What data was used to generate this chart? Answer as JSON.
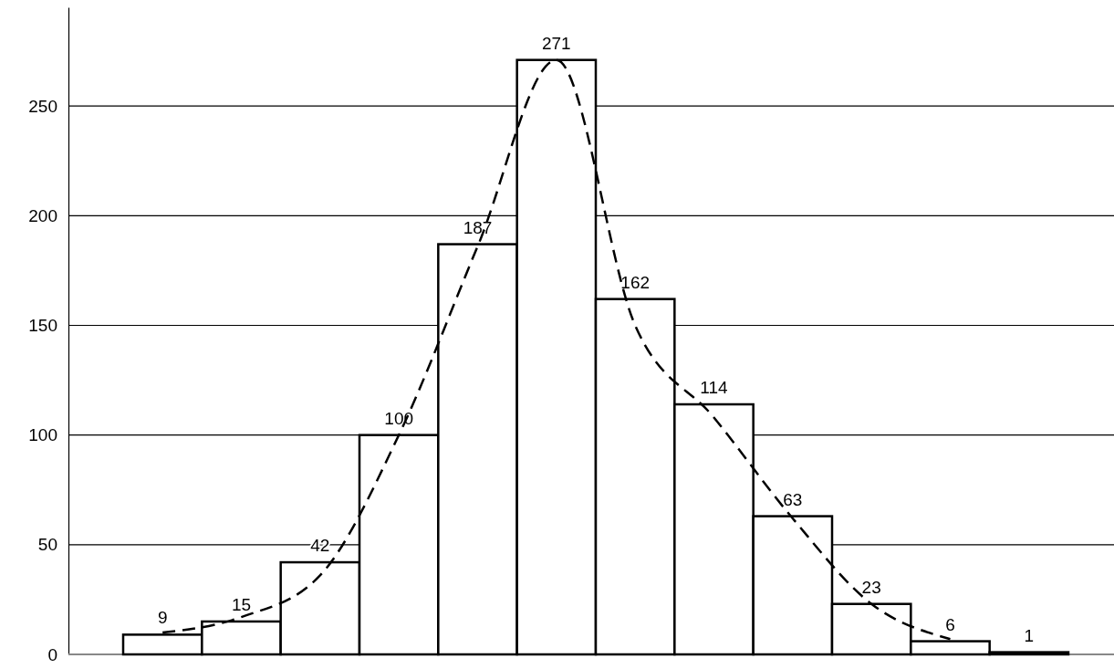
{
  "chart_data": {
    "type": "bar",
    "categories": [
      null,
      null,
      null,
      null,
      null,
      null,
      null,
      null,
      null,
      null,
      null,
      null
    ],
    "ylim": [
      0,
      295
    ],
    "yticks": [
      0,
      50,
      100,
      150,
      200,
      250
    ],
    "grid": "y",
    "line_style": "dashed",
    "series": [
      {
        "color": "#ffffff",
        "values": [
          9,
          15,
          42,
          100,
          187,
          271,
          162,
          114,
          63,
          23,
          6,
          1
        ],
        "value_labels": [
          "9",
          "15",
          "42",
          "100",
          "187",
          "271",
          "162",
          "114",
          "63",
          "23",
          "6",
          "1"
        ]
      },
      {
        "type": "line",
        "color": "#000000",
        "values": [
          10,
          17,
          36,
          100,
          186,
          271,
          150,
          108,
          62,
          23,
          7,
          null
        ]
      }
    ]
  }
}
